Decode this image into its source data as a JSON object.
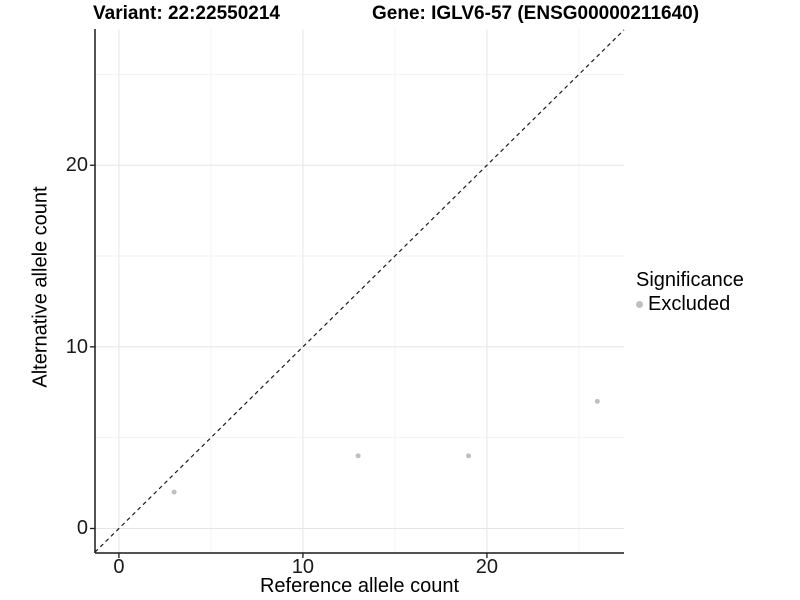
{
  "chart_data": {
    "type": "scatter",
    "titles": {
      "left": "Variant: 22:22550214",
      "right": "Gene: IGLV6-57 (ENSG00000211640)"
    },
    "xlabel": "Reference allele count",
    "ylabel": "Alternative allele count",
    "xlim": [
      -1.3,
      27.45
    ],
    "ylim": [
      -1.35,
      27.5
    ],
    "x_major_ticks": [
      0,
      10,
      20
    ],
    "y_major_ticks": [
      0,
      10,
      20
    ],
    "x_minor_ticks": [
      5,
      15,
      25
    ],
    "y_minor_ticks": [
      5,
      15,
      25
    ],
    "grid": true,
    "series": [
      {
        "name": "Excluded",
        "color": "#bfbfbf",
        "points": [
          [
            3,
            2
          ],
          [
            13,
            4
          ],
          [
            19,
            4
          ],
          [
            26,
            7
          ]
        ]
      }
    ],
    "reference_line": {
      "type": "identity",
      "style": "dashed"
    },
    "legend": {
      "position": "right",
      "title": "Significance",
      "items": [
        {
          "label": "Excluded",
          "color": "#bfbfbf"
        }
      ]
    },
    "colors": {
      "background": "#ffffff",
      "grid_major": "#e5e5e5",
      "grid_minor": "#f2f2f2",
      "axis": "#1a1a1a",
      "reference_line": "#1a1a1a"
    }
  }
}
